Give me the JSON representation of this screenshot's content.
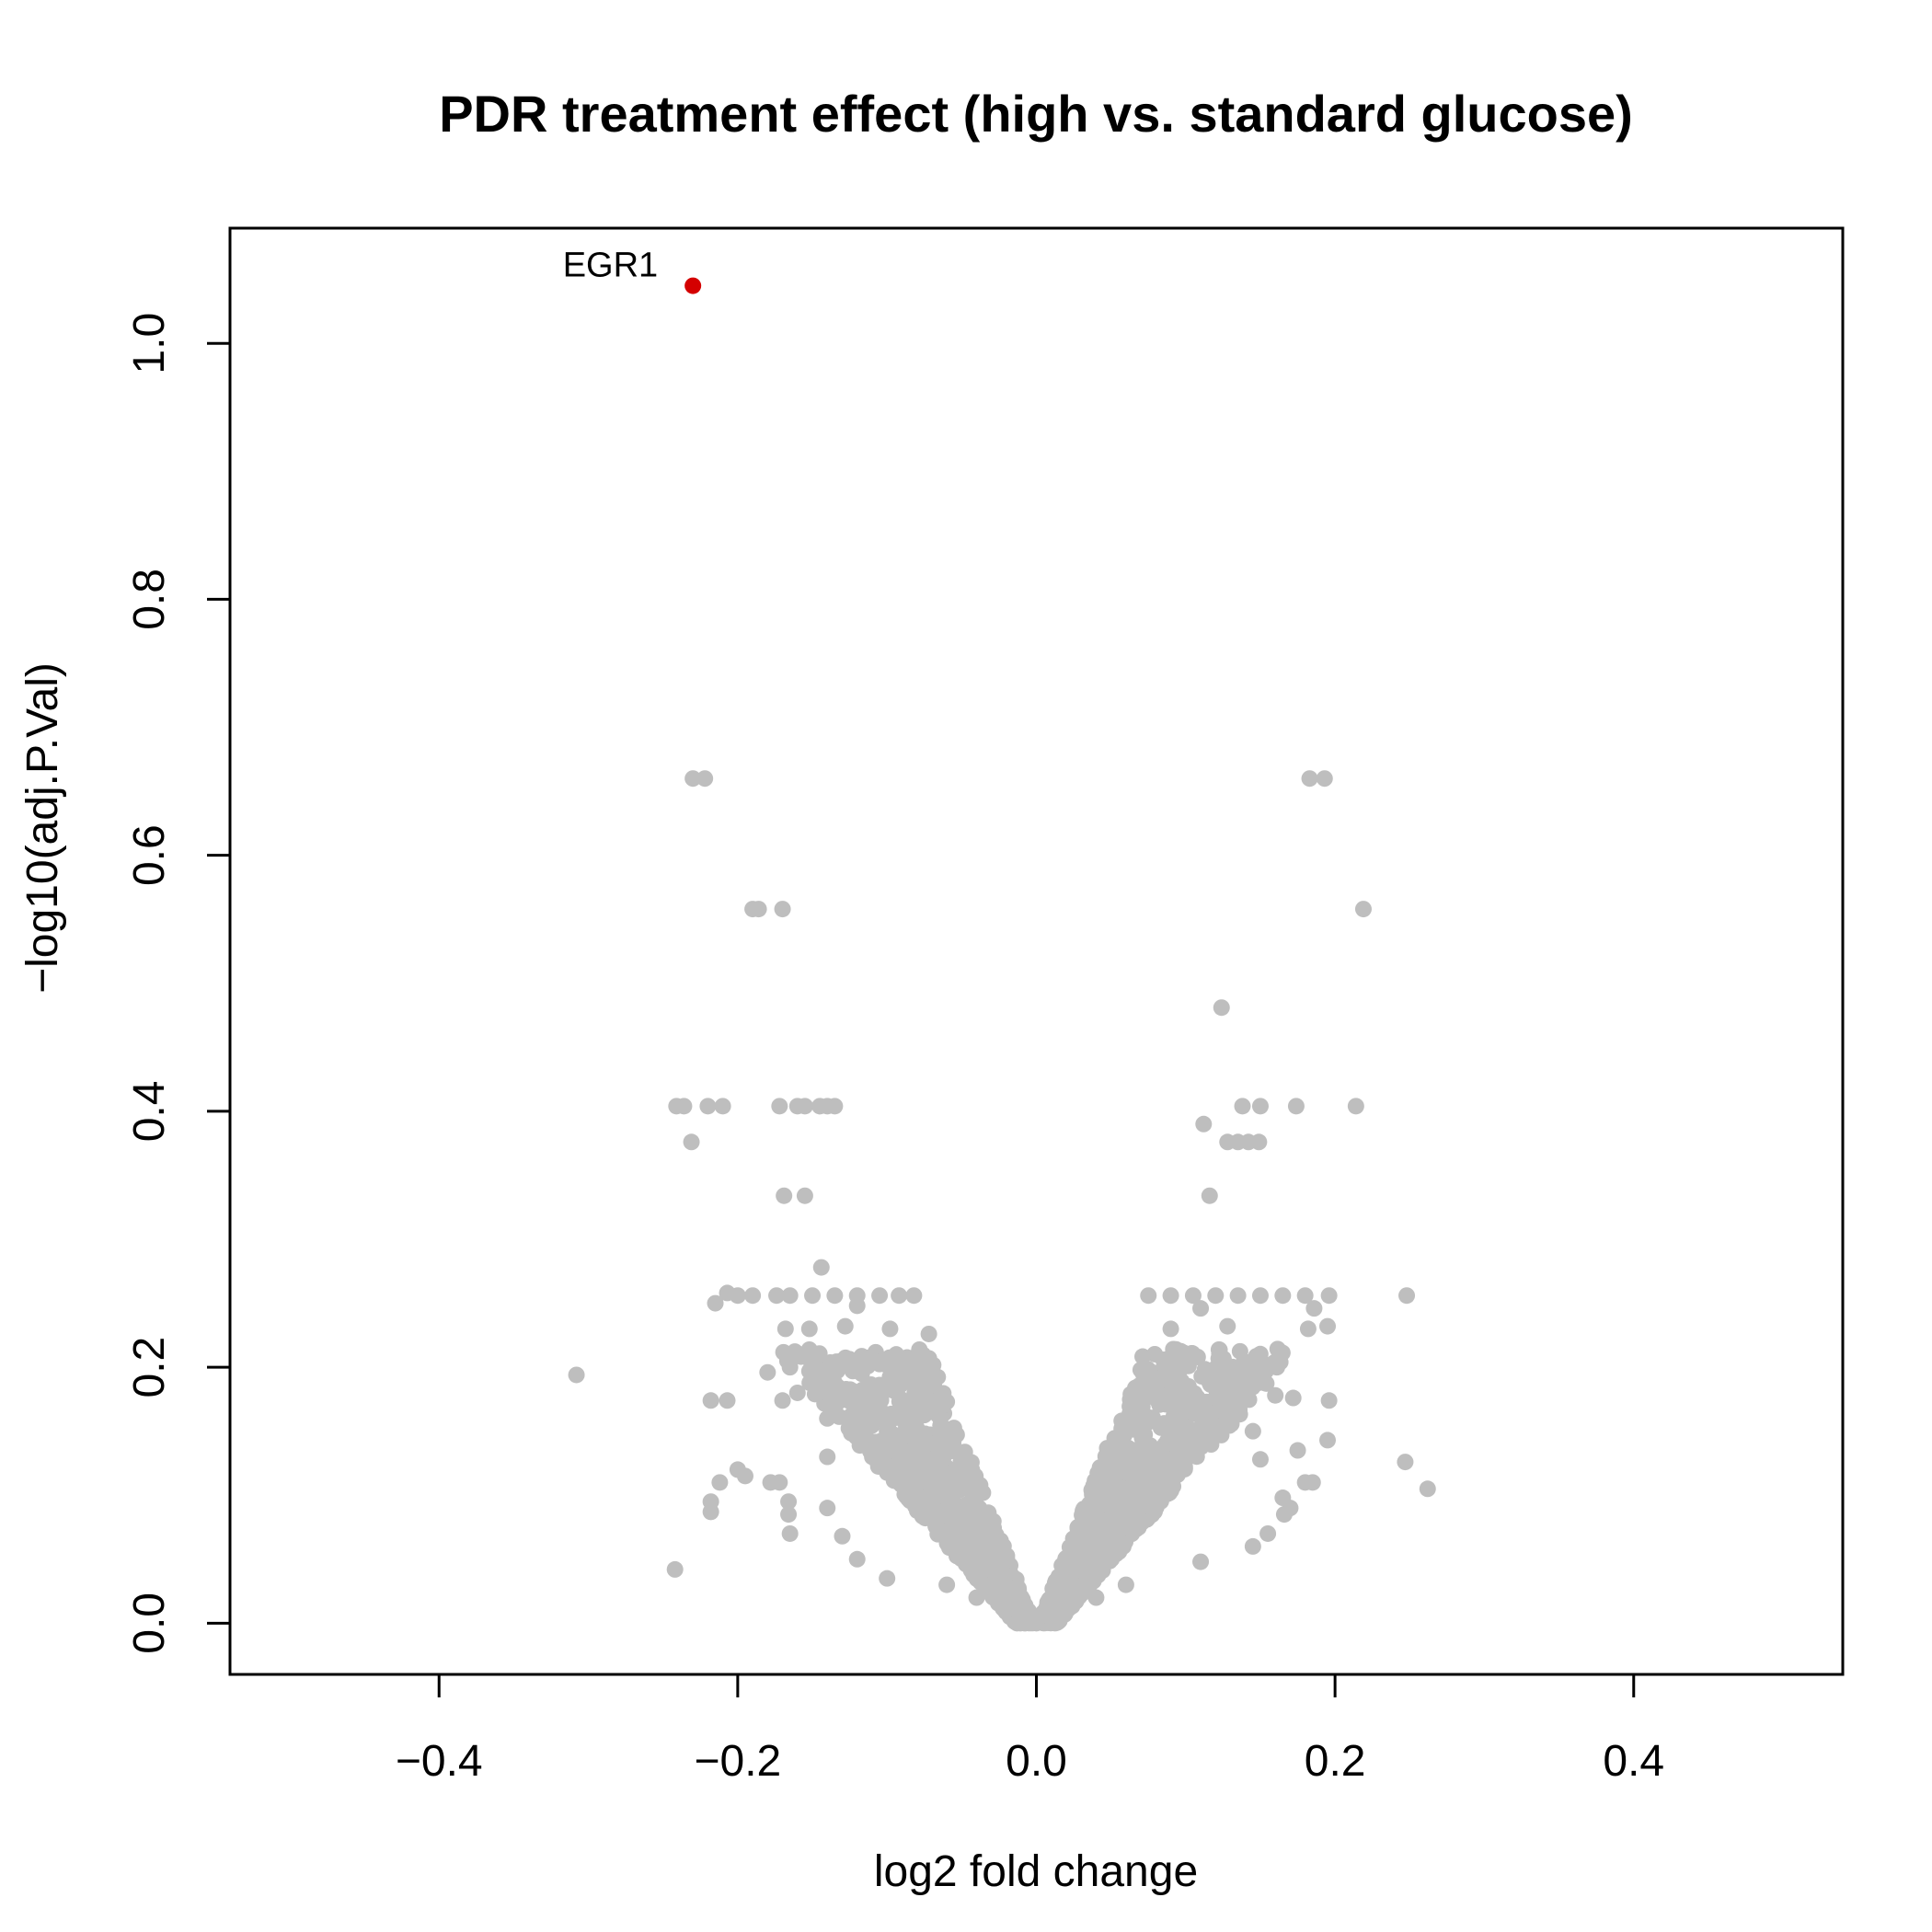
{
  "chart_data": {
    "type": "scatter",
    "title": "PDR treatment effect (high vs. standard glucose)",
    "xlabel": "log2 fold change",
    "ylabel": "−log10(adj.P.Val)",
    "xlim": [
      -0.54,
      0.54
    ],
    "ylim": [
      -0.04,
      1.09
    ],
    "x_ticks": [
      -0.4,
      -0.2,
      0.0,
      0.2,
      0.4
    ],
    "x_tick_labels": [
      "−0.4",
      "−0.2",
      "0.0",
      "0.2",
      "0.4"
    ],
    "y_ticks": [
      0.0,
      0.2,
      0.4,
      0.6,
      0.8,
      1.0
    ],
    "y_tick_labels": [
      "0.0",
      "0.2",
      "0.4",
      "0.6",
      "0.8",
      "1.0"
    ],
    "grid": false,
    "legend": "none",
    "colors": {
      "background": "#ffffff",
      "point": "#bebebe",
      "highlight": "#d40000"
    },
    "highlighted_points": [
      {
        "label": "EGR1",
        "x": -0.23,
        "y": 1.045
      }
    ],
    "series": [
      {
        "color": "#bebebe",
        "points": [
          [
            -0.23,
            0.66
          ],
          [
            -0.222,
            0.66
          ],
          [
            0.183,
            0.66
          ],
          [
            0.193,
            0.66
          ],
          [
            -0.19,
            0.558
          ],
          [
            -0.186,
            0.558
          ],
          [
            -0.17,
            0.558
          ],
          [
            0.219,
            0.558
          ],
          [
            0.124,
            0.481
          ],
          [
            -0.241,
            0.404
          ],
          [
            -0.236,
            0.404
          ],
          [
            -0.22,
            0.404
          ],
          [
            -0.21,
            0.404
          ],
          [
            -0.172,
            0.404
          ],
          [
            -0.16,
            0.404
          ],
          [
            -0.155,
            0.404
          ],
          [
            -0.145,
            0.404
          ],
          [
            -0.14,
            0.404
          ],
          [
            -0.135,
            0.404
          ],
          [
            0.138,
            0.404
          ],
          [
            0.15,
            0.404
          ],
          [
            0.174,
            0.404
          ],
          [
            0.214,
            0.404
          ],
          [
            -0.231,
            0.376
          ],
          [
            0.112,
            0.39
          ],
          [
            0.128,
            0.376
          ],
          [
            0.135,
            0.376
          ],
          [
            0.142,
            0.376
          ],
          [
            0.149,
            0.376
          ],
          [
            -0.169,
            0.334
          ],
          [
            -0.155,
            0.334
          ],
          [
            0.116,
            0.334
          ],
          [
            -0.144,
            0.278
          ],
          [
            -0.207,
            0.258
          ],
          [
            -0.2,
            0.256
          ],
          [
            -0.19,
            0.256
          ],
          [
            -0.174,
            0.256
          ],
          [
            -0.165,
            0.256
          ],
          [
            -0.15,
            0.256
          ],
          [
            -0.135,
            0.256
          ],
          [
            -0.12,
            0.256
          ],
          [
            -0.105,
            0.256
          ],
          [
            -0.092,
            0.256
          ],
          [
            -0.082,
            0.256
          ],
          [
            0.075,
            0.256
          ],
          [
            0.09,
            0.256
          ],
          [
            0.105,
            0.256
          ],
          [
            0.12,
            0.256
          ],
          [
            0.135,
            0.256
          ],
          [
            0.15,
            0.256
          ],
          [
            0.165,
            0.256
          ],
          [
            0.18,
            0.256
          ],
          [
            0.196,
            0.256
          ],
          [
            0.248,
            0.256
          ],
          [
            -0.215,
            0.25
          ],
          [
            -0.12,
            0.248
          ],
          [
            0.11,
            0.246
          ],
          [
            0.186,
            0.246
          ],
          [
            -0.168,
            0.23
          ],
          [
            -0.152,
            0.23
          ],
          [
            -0.128,
            0.232
          ],
          [
            -0.098,
            0.23
          ],
          [
            -0.072,
            0.226
          ],
          [
            0.09,
            0.23
          ],
          [
            0.128,
            0.232
          ],
          [
            0.182,
            0.23
          ],
          [
            0.195,
            0.232
          ],
          [
            -0.308,
            0.194
          ],
          [
            -0.18,
            0.196
          ],
          [
            -0.165,
            0.2
          ],
          [
            -0.13,
            0.205
          ],
          [
            -0.1,
            0.205
          ],
          [
            0.108,
            0.208
          ],
          [
            0.15,
            0.205
          ],
          [
            0.118,
            0.19
          ],
          [
            -0.218,
            0.174
          ],
          [
            -0.207,
            0.174
          ],
          [
            -0.17,
            0.174
          ],
          [
            -0.16,
            0.18
          ],
          [
            -0.06,
            0.173
          ],
          [
            0.12,
            0.176
          ],
          [
            0.16,
            0.178
          ],
          [
            0.172,
            0.176
          ],
          [
            0.196,
            0.174
          ],
          [
            -0.14,
            0.16
          ],
          [
            -0.12,
            0.155
          ],
          [
            -0.1,
            0.15
          ],
          [
            -0.08,
            0.152
          ],
          [
            0.13,
            0.16
          ],
          [
            0.145,
            0.15
          ],
          [
            0.195,
            0.143
          ],
          [
            -0.2,
            0.12
          ],
          [
            -0.195,
            0.115
          ],
          [
            -0.212,
            0.11
          ],
          [
            -0.178,
            0.11
          ],
          [
            -0.172,
            0.11
          ],
          [
            -0.14,
            0.13
          ],
          [
            -0.09,
            0.135
          ],
          [
            0.15,
            0.128
          ],
          [
            0.175,
            0.135
          ],
          [
            0.247,
            0.126
          ],
          [
            0.18,
            0.11
          ],
          [
            0.185,
            0.11
          ],
          [
            0.262,
            0.105
          ],
          [
            -0.218,
            0.095
          ],
          [
            -0.218,
            0.087
          ],
          [
            -0.166,
            0.095
          ],
          [
            -0.166,
            0.085
          ],
          [
            -0.14,
            0.09
          ],
          [
            0.165,
            0.098
          ],
          [
            0.17,
            0.09
          ],
          [
            0.155,
            0.07
          ],
          [
            0.166,
            0.085
          ],
          [
            -0.165,
            0.07
          ],
          [
            -0.13,
            0.068
          ],
          [
            0.145,
            0.06
          ],
          [
            -0.242,
            0.042
          ],
          [
            -0.12,
            0.05
          ],
          [
            -0.1,
            0.035
          ],
          [
            0.11,
            0.048
          ],
          [
            -0.06,
            0.03
          ],
          [
            0.06,
            0.03
          ],
          [
            -0.04,
            0.02
          ],
          [
            0.04,
            0.02
          ],
          [
            -0.02,
            0.01
          ],
          [
            0.02,
            0.01
          ],
          [
            0.0,
            0.0
          ],
          [
            -0.01,
            0.004
          ],
          [
            0.01,
            0.004
          ]
        ]
      }
    ]
  }
}
